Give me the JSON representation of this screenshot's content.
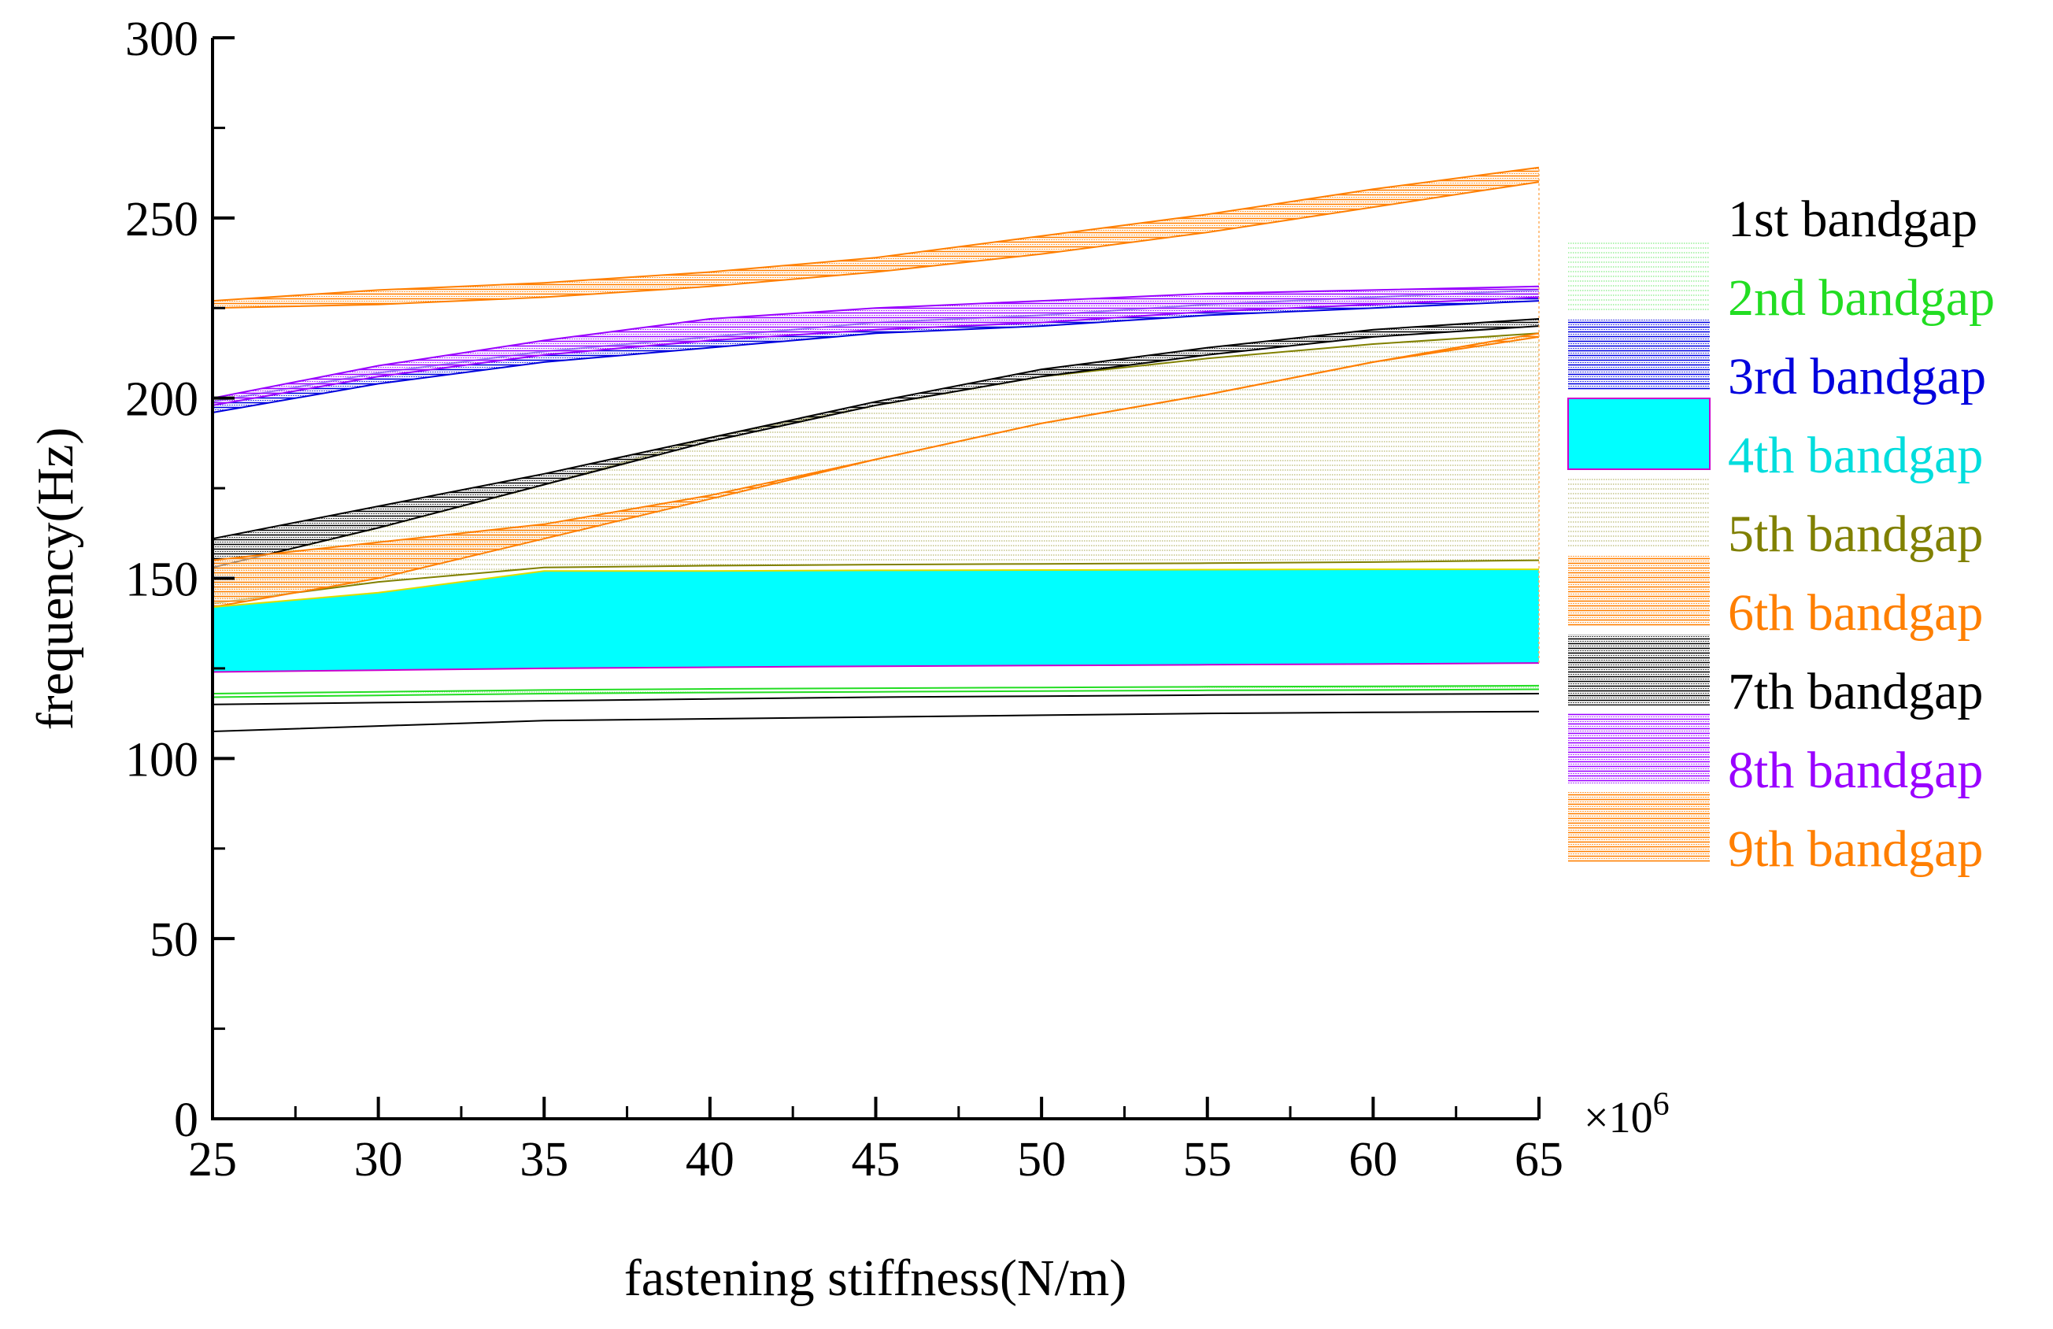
{
  "chart_data": {
    "type": "area",
    "title": "",
    "xlabel": "fastening stiffness(N/m)",
    "ylabel": "frequency(Hz)",
    "x_multiplier_label": "×10",
    "x_multiplier_exponent": "6",
    "xlim": [
      25,
      65
    ],
    "ylim": [
      0,
      300
    ],
    "x_ticks": [
      "25",
      "30",
      "35",
      "40",
      "45",
      "50",
      "55",
      "60",
      "65"
    ],
    "y_ticks": [
      "0",
      "50",
      "100",
      "150",
      "200",
      "250",
      "300"
    ],
    "x": [
      25,
      30,
      35,
      40,
      45,
      50,
      55,
      60,
      65
    ],
    "series": [
      {
        "name": "1st bandgap",
        "color": "#000000",
        "pattern": "none",
        "lower": [
          107.5,
          109,
          110.5,
          111,
          111.5,
          112,
          112.5,
          112.8,
          113
        ],
        "upper": [
          115,
          115.5,
          116,
          116.5,
          117,
          117.3,
          117.6,
          117.8,
          118
        ]
      },
      {
        "name": "2nd bandgap",
        "color": "#22dd22",
        "pattern": "dots",
        "lower": [
          117,
          117.5,
          118,
          118.3,
          118.5,
          118.7,
          118.9,
          119,
          119.2
        ],
        "upper": [
          118,
          118.5,
          119,
          119.3,
          119.5,
          119.7,
          119.9,
          120,
          120.2
        ]
      },
      {
        "name": "3rd bandgap",
        "color": "#0000dd",
        "pattern": "lines",
        "lower": [
          196,
          204,
          210,
          214,
          218,
          220,
          223,
          225,
          227
        ],
        "upper": [
          199,
          207,
          213,
          217,
          221,
          223,
          226,
          228,
          230
        ]
      },
      {
        "name": "4th bandgap",
        "color": "#00ffff",
        "pattern": "solid",
        "lower": [
          124,
          124.5,
          125,
          125.3,
          125.6,
          125.8,
          126,
          126.2,
          126.5
        ],
        "upper": [
          142,
          146,
          152,
          152,
          152.2,
          152.3,
          152.4,
          152.5,
          152.5
        ]
      },
      {
        "name": "5th bandgap",
        "color": "#808000",
        "pattern": "dots",
        "lower": [
          143,
          149,
          153,
          153.5,
          153.8,
          154,
          154.2,
          154.5,
          155
        ],
        "upper": [
          153,
          164,
          176,
          189,
          198,
          206,
          211,
          215,
          218
        ]
      },
      {
        "name": "6th bandgap",
        "color": "#ff7f00",
        "pattern": "lines",
        "lower": [
          142,
          150,
          161,
          172,
          183,
          193,
          201,
          210,
          217
        ],
        "upper": [
          155,
          160,
          165,
          173,
          183,
          193,
          201,
          210,
          218
        ]
      },
      {
        "name": "7th bandgap",
        "color": "#000000",
        "pattern": "lines",
        "lower": [
          153,
          164,
          176,
          188,
          198,
          206,
          212,
          217,
          220
        ],
        "upper": [
          161,
          170,
          179,
          189,
          199,
          208,
          214,
          219,
          222
        ]
      },
      {
        "name": "8th bandgap",
        "color": "#9900ff",
        "pattern": "lines",
        "lower": [
          198,
          206,
          212,
          216,
          219,
          221,
          224,
          226,
          228
        ],
        "upper": [
          200,
          209,
          216,
          222,
          225,
          227,
          229,
          230,
          231
        ]
      },
      {
        "name": "9th bandgap",
        "color": "#ff7f00",
        "pattern": "lines",
        "lower": [
          225,
          226,
          228,
          231,
          235,
          240,
          246,
          253,
          260
        ],
        "upper": [
          227,
          230,
          232,
          235,
          239,
          245,
          251,
          258,
          264
        ]
      }
    ],
    "legend_position": "right"
  }
}
